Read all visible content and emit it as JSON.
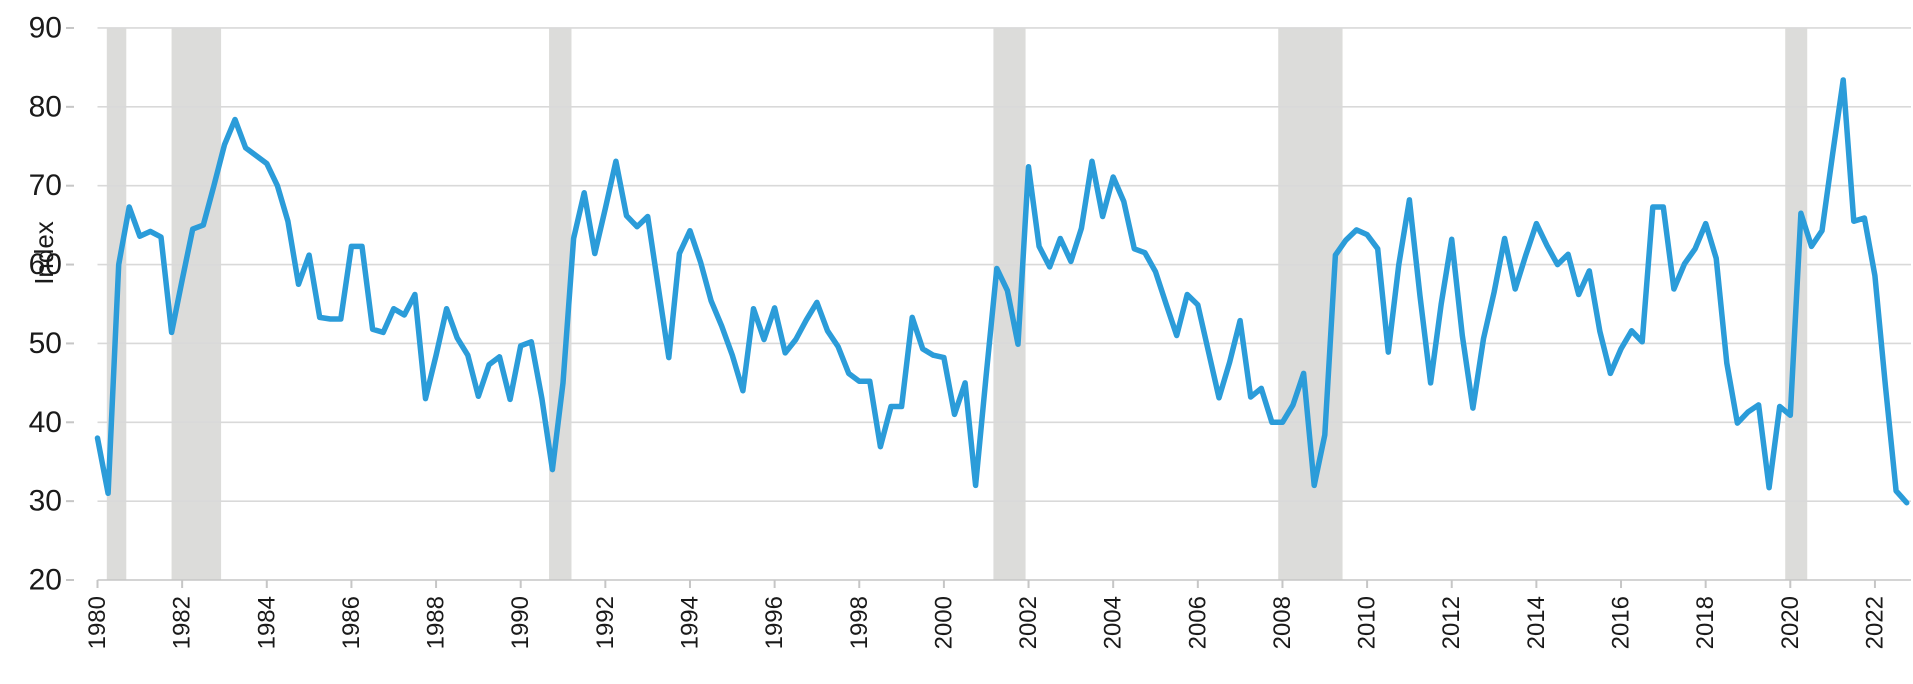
{
  "chart_data": {
    "type": "line",
    "title": "",
    "ylabel": "Index",
    "xlabel": "",
    "legend": null,
    "grid": "horizontal",
    "y_axis": {
      "min": 20,
      "max": 90,
      "ticks": [
        20,
        30,
        40,
        50,
        60,
        70,
        80,
        90
      ]
    },
    "x_axis": {
      "tick_years": [
        1980,
        1982,
        1984,
        1986,
        1988,
        1990,
        1992,
        1994,
        1996,
        1998,
        2000,
        2002,
        2004,
        2006,
        2008,
        2010,
        2012,
        2014,
        2016,
        2018,
        2020,
        2022
      ]
    },
    "series": [
      {
        "name": "Index",
        "frequency": "quarterly",
        "start_year": 1980,
        "values": [
          38,
          31,
          60,
          67.3,
          63.6,
          64.2,
          63.5,
          51.4,
          58,
          64.5,
          65,
          70,
          75.2,
          78.4,
          74.8,
          73.8,
          72.8,
          70,
          65.5,
          57.5,
          61.2,
          53.3,
          53.1,
          53.1,
          62.3,
          62.3,
          51.8,
          51.4,
          54.4,
          53.6,
          56.2,
          43,
          48.5,
          54.4,
          50.7,
          48.5,
          43.3,
          47.3,
          48.3,
          42.9,
          49.7,
          50.2,
          43,
          34,
          45,
          63.3,
          69.1,
          61.4,
          67.1,
          73.1,
          66.2,
          64.8,
          66.1,
          57.2,
          48.2,
          61.4,
          64.3,
          60.3,
          55.4,
          52.2,
          48.5,
          44,
          54.4,
          50.5,
          54.5,
          48.8,
          50.5,
          53,
          55.2,
          51.6,
          49.6,
          46.2,
          45.2,
          45.2,
          36.9,
          42,
          42,
          53.3,
          49.3,
          48.5,
          48.2,
          41,
          45,
          32,
          46,
          59.5,
          56.7,
          49.9,
          72.4,
          62.3,
          59.7,
          63.3,
          60.4,
          64.6,
          73.1,
          66.1,
          71.1,
          68,
          62,
          61.5,
          59.1,
          55,
          51,
          56.2,
          54.9,
          49,
          43.1,
          47.6,
          52.9,
          43.2,
          44.3,
          40,
          40,
          42.2,
          46.2,
          32,
          38.4,
          61.2,
          63.1,
          64.4,
          63.8,
          62,
          48.9,
          60,
          68.2,
          56,
          45,
          55,
          63.2,
          51,
          41.8,
          50.6,
          56.5,
          63.3,
          56.9,
          61.2,
          65.2,
          62.4,
          60,
          61.3,
          56.2,
          59.2,
          51.5,
          46.2,
          49.3,
          51.6,
          50.2,
          67.3,
          67.3,
          56.9,
          60.1,
          62,
          65.2,
          60.8,
          47.5,
          39.9,
          41.3,
          42.2,
          31.7,
          42,
          40.9,
          66.5,
          62.3,
          64.3,
          74,
          83.4,
          65.5,
          65.9,
          58.6,
          44.5,
          31.3,
          29.8
        ]
      }
    ],
    "recession_bands": [
      {
        "from": 1980.22,
        "to": 1980.68
      },
      {
        "from": 1981.75,
        "to": 1982.92
      },
      {
        "from": 1990.67,
        "to": 1991.2
      },
      {
        "from": 2001.17,
        "to": 2001.93
      },
      {
        "from": 2007.9,
        "to": 2009.42
      },
      {
        "from": 2019.88,
        "to": 2020.4
      }
    ],
    "colors": {
      "line": "#2B9CD9",
      "recession_band": "#DCDCDA",
      "gridline": "#D9D9D9",
      "axis_line": "#C6C6C6",
      "tick_mark": "#C6C6C6",
      "text": "#1A1A1A",
      "background": "#FFFFFF"
    }
  }
}
